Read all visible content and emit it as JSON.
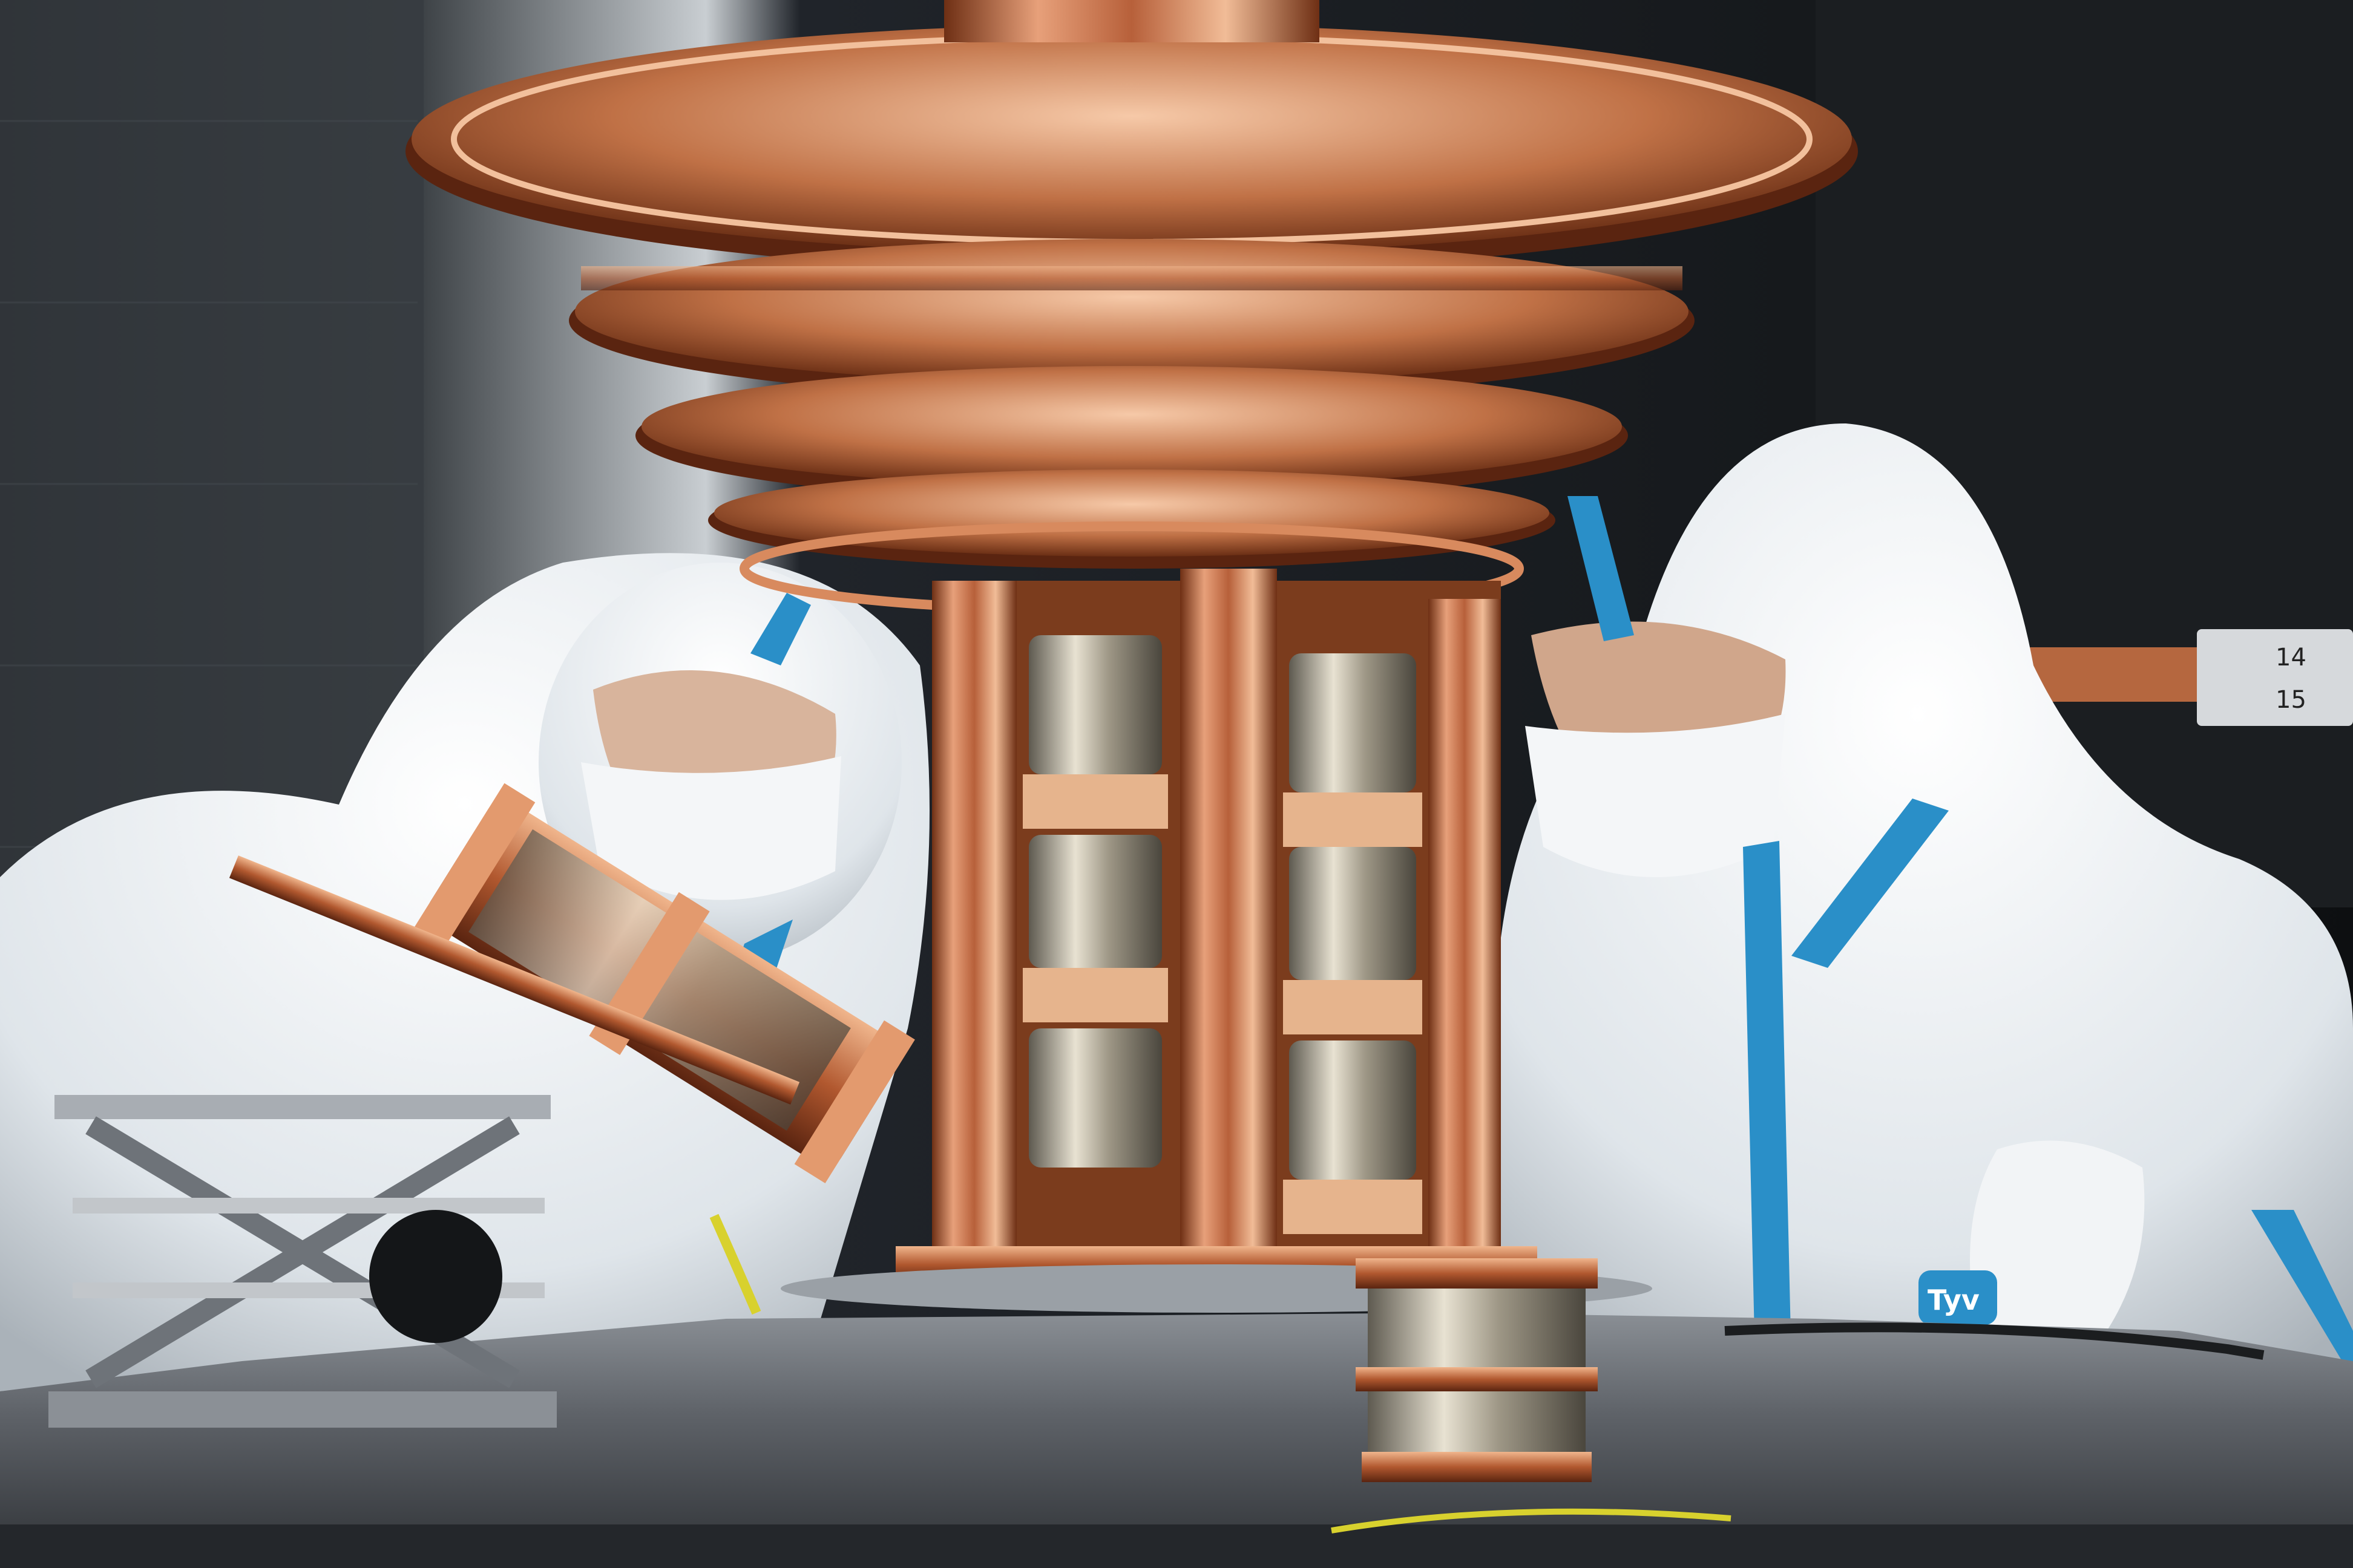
{
  "scene": {
    "description_none": "",
    "suit_brand": "Tyv",
    "label_top": "14",
    "label_bottom": "15"
  },
  "colors": {
    "copper": "#c8764a",
    "copper_dark": "#7a3a1c",
    "copper_light": "#f0b58c",
    "suit": "#e9eef2",
    "tape": "#2a8fc8",
    "table": "#6c7076",
    "background": "#15181b"
  }
}
